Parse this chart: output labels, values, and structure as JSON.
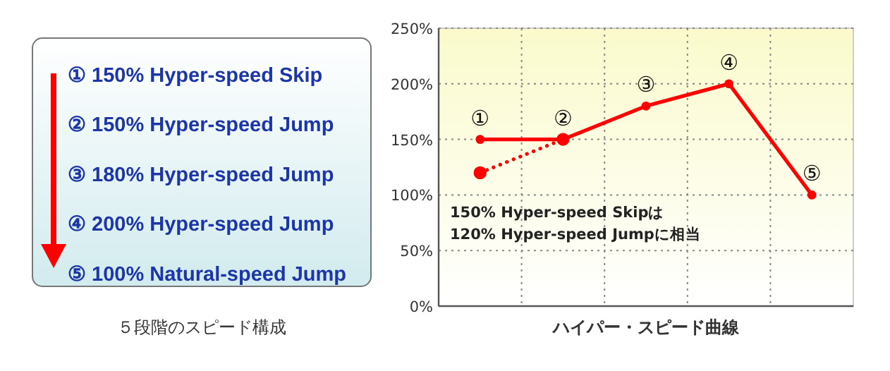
{
  "chart_data": [
    {
      "type": "other",
      "annotations": [
        "① 150% Hyper-speed Skip",
        "② 150% Hyper-speed Jump",
        "③ 180% Hyper-speed Jump",
        "④ 200% Hyper-speed Jump",
        "⑤ 100% Natural-speed Jump"
      ],
      "xlabel": "５段階のスピード構成"
    },
    {
      "type": "line",
      "categories": [
        null,
        null,
        null,
        null,
        null
      ],
      "series": [
        {
          "color": "#ff0000",
          "values": [
            150,
            150,
            180,
            200,
            100
          ],
          "value_labels": [
            "①",
            "②",
            "③",
            "④",
            "⑤"
          ]
        },
        {
          "color": "#ff0000",
          "values": [
            120,
            150,
            null,
            null,
            null
          ],
          "line_style": "dotted"
        }
      ],
      "ylim": [
        0,
        250
      ],
      "yticks": [
        {
          "value": 0,
          "label": "0%"
        },
        {
          "value": 50,
          "label": "50%"
        },
        {
          "value": 100,
          "label": "100%"
        },
        {
          "value": 150,
          "label": "150%"
        },
        {
          "value": 200,
          "label": "200%"
        },
        {
          "value": 250,
          "label": "250%"
        }
      ],
      "grid": true,
      "marker": "circle",
      "xlabel": "ハイパー・スピード曲線",
      "annotations": [
        "150% Hyper-speed Skipは",
        "120% Hyper-speed Jumpに相当"
      ]
    }
  ]
}
